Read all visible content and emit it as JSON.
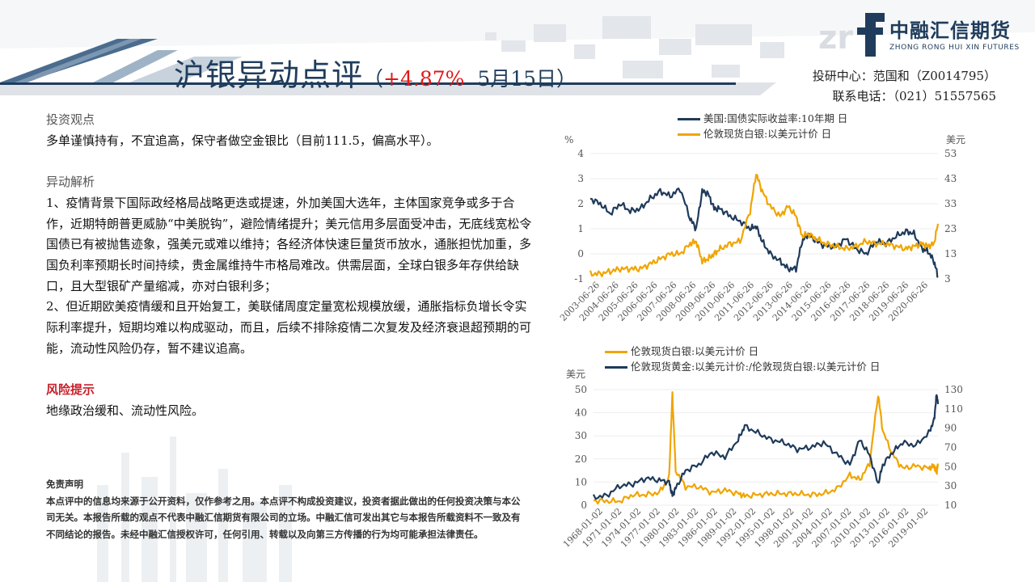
{
  "header": {
    "title_main": "沪银异动点评",
    "title_open": "（",
    "title_change": "+4.87%",
    "title_date": "5月15日",
    "title_close": "）"
  },
  "logo": {
    "cn": "中融汇信期货",
    "en": "ZHONG RONG HUI XIN FUTURES",
    "icon": "zrhx-f-logo-icon"
  },
  "contact": {
    "line1": "投研中心：范国和（Z0014795）",
    "line2": "联系电话：（021）51557565"
  },
  "content": {
    "view_heading": "投资观点",
    "view_text": "多单谨慎持有，不宜追高，保守者做空金银比（目前111.5，偏高水平）。",
    "analysis_heading": "异动解析",
    "analysis_p1": "1、疫情背景下国际政经格局战略更迭或提速，外加美国大选年，主体国家竞争或多于合作，近期特朗普更威胁“中美脱钩”，避险情绪提升；美元信用多层面受冲击，无底线宽松令国债已有被抛售迹象，强美元或难以维持；各经济体快速巨量货币放水，通胀担忧加重，多国负利率预期长时间持续，贵金属维持牛市格局难改。供需层面，全球白银多年存供给缺口，且大型银矿产量缩减，亦对白银利多；",
    "analysis_p2": "2、但近期欧美疫情缓和且开始复工，美联储周度定量宽松规模放缓，通胀指标负增长令实际利率提升，短期均难以构成驱动，而且，后续不排除疫情二次复发及经济衰退超预期的可能，流动性风险仍存，暂不建议追高。",
    "risk_heading": "风险提示",
    "risk_text": "地缘政治缓和、流动性风险。",
    "disclaimer_heading": "免责声明",
    "disclaimer_text": "本点评中的信息均来源于公开资料，仅作参考之用。本点评不构成投资建议，投资者据此做出的任何投资决策与本公司无关。本报告所载的观点不代表中融汇信期货有限公司的立场。中融汇信可发出其它与本报告所载资料不一致及有不同结论的报告。未经中融汇信授权许可，任何引用、转载以及向第三方传播的行为均可能承担法律责任。"
  },
  "chart_data": [
    {
      "type": "line",
      "legend": [
        "美国:国债实际收益率:10年期 日",
        "伦敦现货白银:以美元计价 日"
      ],
      "left_unit": "%",
      "right_unit": "美元",
      "left_ticks": [
        "4",
        "3",
        "2",
        "1",
        "0",
        "-1"
      ],
      "right_ticks": [
        "53",
        "43",
        "33",
        "23",
        "13",
        "3"
      ],
      "left_ylim": [
        -1,
        4
      ],
      "right_ylim": [
        3,
        53
      ],
      "x_ticks": [
        "2003-06-26",
        "2004-06-26",
        "2005-06-26",
        "2006-06-26",
        "2007-06-26",
        "2008-06-26",
        "2009-06-26",
        "2010-06-26",
        "2011-06-26",
        "2012-06-26",
        "2013-06-26",
        "2014-06-26",
        "2015-06-26",
        "2016-06-26",
        "2017-06-26",
        "2018-06-26",
        "2019-06-26",
        "2020-06-26"
      ],
      "x": [
        2003.0,
        2003.5,
        2004.0,
        2004.5,
        2005.0,
        2005.5,
        2006.0,
        2006.5,
        2007.0,
        2007.5,
        2008.0,
        2008.3,
        2008.6,
        2008.9,
        2009.2,
        2009.5,
        2010.0,
        2010.5,
        2011.0,
        2011.3,
        2011.6,
        2012.0,
        2012.5,
        2012.9,
        2013.3,
        2013.6,
        2013.9,
        2014.3,
        2014.8,
        2015.3,
        2015.8,
        2016.3,
        2016.8,
        2017.3,
        2017.8,
        2018.3,
        2018.8,
        2019.2,
        2019.6,
        2019.9,
        2020.2,
        2020.4
      ],
      "series": [
        {
          "name": "美国:国债实际收益率:10年期 日",
          "color": "#1f3a5a",
          "axis": "left",
          "values": [
            2.2,
            2.0,
            1.6,
            2.0,
            1.7,
            1.8,
            2.2,
            2.5,
            2.3,
            2.6,
            1.4,
            1.0,
            2.5,
            2.4,
            1.8,
            1.8,
            1.5,
            1.3,
            1.0,
            1.1,
            0.5,
            0.0,
            -0.3,
            -0.6,
            -0.6,
            0.5,
            0.8,
            0.5,
            0.3,
            0.3,
            0.6,
            0.2,
            0.0,
            0.5,
            0.4,
            0.7,
            0.9,
            0.8,
            0.2,
            0.1,
            -0.3,
            -0.9
          ]
        },
        {
          "name": "伦敦现货白银:以美元计价 日",
          "color": "#f0a500",
          "axis": "right",
          "values": [
            5,
            5,
            6,
            7,
            7,
            7,
            9,
            11,
            13,
            13,
            17,
            18,
            10,
            11,
            13,
            15,
            17,
            18,
            30,
            45,
            38,
            32,
            28,
            32,
            28,
            20,
            21,
            19,
            17,
            16,
            15,
            16,
            18,
            17,
            17,
            16,
            15,
            16,
            17,
            16,
            17,
            25
          ]
        }
      ]
    },
    {
      "type": "line",
      "legend": [
        "伦敦现货白银:以美元计价 日",
        "伦敦现货黄金:以美元计价:/伦敦现货白银:以美元计价 日"
      ],
      "left_unit": "美元",
      "left_ticks": [
        "50",
        "40",
        "30",
        "20",
        "10",
        "0"
      ],
      "right_ticks": [
        "130",
        "110",
        "90",
        "70",
        "50",
        "30",
        "10"
      ],
      "left_ylim": [
        0,
        50
      ],
      "right_ylim": [
        10,
        130
      ],
      "x_ticks": [
        "1968-01-02",
        "1971-01-02",
        "1974-01-02",
        "1977-01-02",
        "1980-01-02",
        "1983-01-02",
        "1986-01-02",
        "1989-01-02",
        "1992-01-02",
        "1995-01-02",
        "1998-01-02",
        "2001-01-02",
        "2004-01-02",
        "2007-01-02",
        "2010-01-02",
        "2013-01-02",
        "2016-01-02",
        "2019-01-02"
      ],
      "x": [
        1968,
        1970,
        1972,
        1974,
        1976,
        1978,
        1979.5,
        1980.0,
        1980.5,
        1982,
        1984,
        1986,
        1988,
        1990,
        1991,
        1993,
        1995,
        1997,
        1999,
        2001,
        2003,
        2005,
        2007,
        2008.5,
        2010,
        2011.3,
        2012,
        2013.5,
        2015,
        2017,
        2019,
        2019.8,
        2020.2,
        2020.4
      ],
      "series": [
        {
          "name": "伦敦现货白银:以美元计价 日",
          "color": "#f0a500",
          "axis": "left",
          "values": [
            2,
            1.8,
            1.7,
            4.5,
            4.5,
            5.5,
            12,
            48,
            15,
            8,
            8,
            5.5,
            6.5,
            5,
            4,
            4.5,
            5,
            5,
            5,
            4.5,
            5,
            7,
            13,
            11,
            18,
            48,
            32,
            22,
            16,
            17,
            16,
            17,
            14,
            18
          ]
        },
        {
          "name": "伦敦现货黄金:以美元计价:/伦敦现货白银:以美元计价 日",
          "color": "#1f3a5a",
          "axis": "right",
          "values": [
            18,
            20,
            30,
            32,
            38,
            36,
            34,
            20,
            28,
            46,
            52,
            65,
            60,
            78,
            92,
            85,
            78,
            75,
            68,
            70,
            75,
            63,
            52,
            78,
            62,
            32,
            52,
            65,
            75,
            72,
            85,
            98,
            125,
            115
          ]
        }
      ]
    }
  ]
}
